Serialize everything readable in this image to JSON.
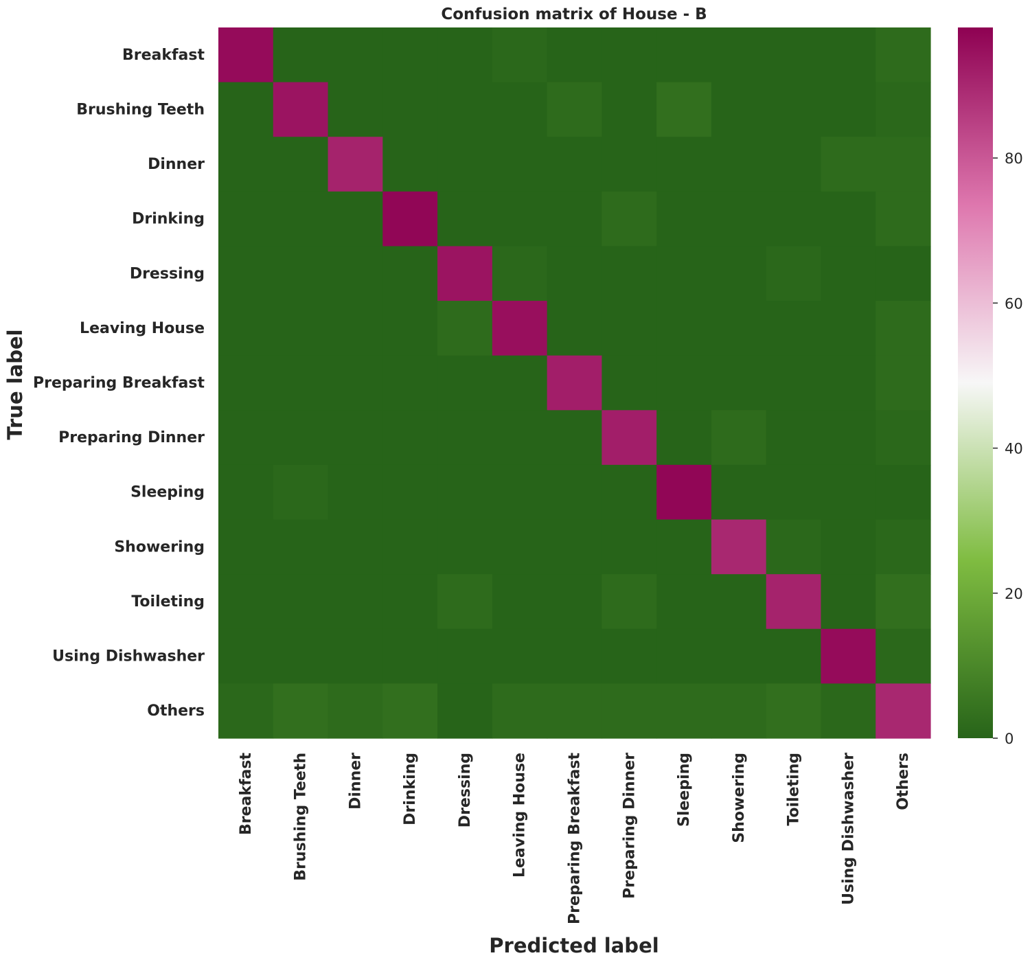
{
  "chart_data": {
    "type": "heatmap",
    "title": "Confusion matrix of House - B",
    "xlabel": "Predicted label",
    "ylabel": "True label",
    "rows": [
      "Breakfast",
      "Brushing Teeth",
      "Dinner",
      "Drinking",
      "Dressing",
      "Leaving House",
      "Preparing Breakfast",
      "Preparing Dinner",
      "Sleeping",
      "Showering",
      "Toileting",
      "Using Dishwasher",
      "Others"
    ],
    "columns": [
      "Breakfast",
      "Brushing Teeth",
      "Dinner",
      "Drinking",
      "Dressing",
      "Leaving House",
      "Preparing Breakfast",
      "Preparing Dinner",
      "Sleeping",
      "Showering",
      "Toileting",
      "Using Dishwasher",
      "Others"
    ],
    "values": [
      [
        96,
        0,
        0,
        0,
        0,
        1,
        0,
        0,
        0,
        0,
        0,
        0,
        2
      ],
      [
        0,
        94,
        0,
        0,
        0,
        0,
        2,
        0,
        3,
        0,
        0,
        0,
        1
      ],
      [
        0,
        0,
        91,
        0,
        0,
        0,
        0,
        0,
        0,
        0,
        0,
        2,
        2
      ],
      [
        0,
        0,
        0,
        97,
        0,
        0,
        0,
        2,
        0,
        0,
        0,
        0,
        2
      ],
      [
        0,
        0,
        0,
        0,
        94,
        1,
        0,
        0,
        0,
        0,
        1,
        0,
        0
      ],
      [
        0,
        0,
        0,
        0,
        2,
        95,
        0,
        0,
        0,
        0,
        0,
        0,
        2
      ],
      [
        0,
        0,
        0,
        0,
        0,
        0,
        92,
        0,
        0,
        0,
        0,
        0,
        2
      ],
      [
        0,
        0,
        0,
        0,
        0,
        0,
        0,
        92,
        0,
        2,
        0,
        0,
        1
      ],
      [
        0,
        1,
        0,
        0,
        0,
        0,
        0,
        0,
        97,
        0,
        0,
        0,
        0
      ],
      [
        0,
        0,
        0,
        0,
        0,
        0,
        0,
        0,
        0,
        90,
        1,
        0,
        1
      ],
      [
        0,
        0,
        0,
        0,
        2,
        0,
        0,
        2,
        0,
        0,
        91,
        0,
        3
      ],
      [
        0,
        0,
        0,
        0,
        0,
        0,
        0,
        0,
        0,
        0,
        0,
        96,
        1
      ],
      [
        1,
        3,
        2,
        3,
        0,
        2,
        2,
        2,
        2,
        2,
        3,
        1,
        90
      ]
    ],
    "colorbar": {
      "min": 0,
      "max": 98,
      "ticks": [
        0,
        20,
        40,
        60,
        80
      ]
    },
    "colormap": "PiYG (reversed)",
    "colors": {
      "low": "#276419",
      "mid_low": "#7fbc41",
      "mid": "#f7f7f7",
      "mid_high": "#de77ae",
      "high": "#8e0152"
    }
  }
}
